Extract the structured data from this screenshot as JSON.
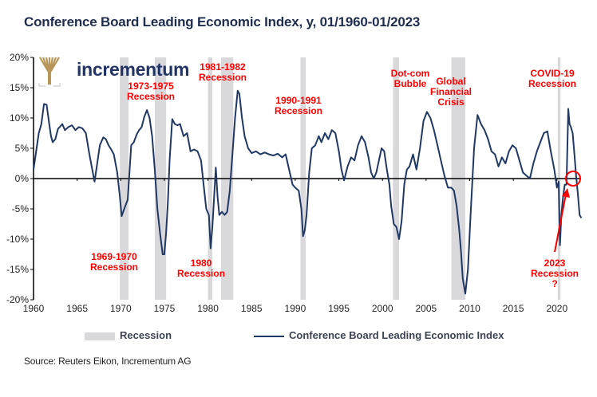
{
  "title": "Conference Board Leading Economic Index, y, 01/1960-01/2023",
  "logo": {
    "text": "incrementum",
    "icon": "tree-icon",
    "color": "#b8965a"
  },
  "legend": {
    "recession_label": "Recession",
    "series_label": "Conference Board Leading Economic Index"
  },
  "source": "Source: Reuters Eikon, Incrementum AG",
  "colors": {
    "line": "#1f3864",
    "recession": "#d9d9dc",
    "annotation": "#ff0000",
    "axis": "#000000"
  },
  "chart_data": {
    "type": "line",
    "title": "Conference Board Leading Economic Index, y, 01/1960-01/2023",
    "xlabel": "",
    "ylabel": "",
    "xlim": [
      1960,
      2023
    ],
    "ylim": [
      -20,
      20
    ],
    "x_ticks": [
      "1960",
      "1965",
      "1970",
      "1975",
      "1980",
      "1985",
      "1990",
      "1995",
      "2000",
      "2005",
      "2010",
      "2015",
      "2020"
    ],
    "y_ticks": [
      "20%",
      "15%",
      "10%",
      "5%",
      "0%",
      "-5%",
      "-10%",
      "-15%",
      "-20%"
    ],
    "y_tick_values": [
      20,
      15,
      10,
      5,
      0,
      -5,
      -10,
      -15,
      -20
    ],
    "grid": false,
    "legend_position": "bottom",
    "recessions": [
      {
        "start": 1969.9,
        "end": 1970.9
      },
      {
        "start": 1973.9,
        "end": 1975.2
      },
      {
        "start": 1980.0,
        "end": 1980.5
      },
      {
        "start": 1981.5,
        "end": 1982.9
      },
      {
        "start": 1990.6,
        "end": 1991.2
      },
      {
        "start": 2001.2,
        "end": 2001.9
      },
      {
        "start": 2007.9,
        "end": 2009.5
      },
      {
        "start": 2020.1,
        "end": 2020.4
      }
    ],
    "series": [
      {
        "name": "Conference Board Leading Economic Index",
        "x": [
          1960.0,
          1960.3,
          1960.6,
          1960.9,
          1961.2,
          1961.5,
          1961.8,
          1962.0,
          1962.2,
          1962.5,
          1962.8,
          1963.0,
          1963.3,
          1963.6,
          1964.0,
          1964.4,
          1964.8,
          1965.2,
          1965.6,
          1966.0,
          1966.4,
          1966.8,
          1967.0,
          1967.3,
          1967.6,
          1968.0,
          1968.3,
          1968.6,
          1968.9,
          1969.2,
          1969.6,
          1969.9,
          1970.1,
          1970.4,
          1970.6,
          1970.8,
          1971.0,
          1971.2,
          1971.5,
          1971.8,
          1972.1,
          1972.4,
          1972.7,
          1973.0,
          1973.3,
          1973.6,
          1973.9,
          1974.2,
          1974.5,
          1974.8,
          1975.0,
          1975.2,
          1975.4,
          1975.6,
          1975.9,
          1976.2,
          1976.5,
          1976.8,
          1977.2,
          1977.6,
          1978.0,
          1978.4,
          1978.8,
          1979.2,
          1979.5,
          1979.8,
          1980.1,
          1980.3,
          1980.5,
          1980.7,
          1980.9,
          1981.1,
          1981.3,
          1981.6,
          1981.9,
          1982.2,
          1982.5,
          1982.8,
          1983.1,
          1983.4,
          1983.6,
          1983.9,
          1984.2,
          1984.6,
          1985.0,
          1985.5,
          1986.0,
          1986.5,
          1987.0,
          1987.5,
          1988.0,
          1988.5,
          1988.9,
          1989.3,
          1989.7,
          1990.0,
          1990.4,
          1990.7,
          1990.9,
          1991.1,
          1991.3,
          1991.6,
          1991.9,
          1992.3,
          1992.7,
          1993.0,
          1993.4,
          1993.8,
          1994.2,
          1994.6,
          1995.0,
          1995.3,
          1995.6,
          1996.0,
          1996.4,
          1996.8,
          1997.2,
          1997.6,
          1998.0,
          1998.4,
          1998.7,
          1999.0,
          1999.3,
          1999.6,
          1999.9,
          2000.2,
          2000.5,
          2000.8,
          2001.0,
          2001.3,
          2001.6,
          2001.9,
          2002.2,
          2002.5,
          2002.8,
          2003.1,
          2003.5,
          2003.9,
          2004.3,
          2004.7,
          2005.1,
          2005.5,
          2005.9,
          2006.3,
          2006.7,
          2007.1,
          2007.5,
          2007.9,
          2008.2,
          2008.5,
          2008.8,
          2009.0,
          2009.2,
          2009.5,
          2009.8,
          2010.1,
          2010.5,
          2010.9,
          2011.3,
          2011.7,
          2012.1,
          2012.5,
          2012.9,
          2013.3,
          2013.7,
          2014.1,
          2014.5,
          2014.9,
          2015.3,
          2015.7,
          2016.1,
          2016.5,
          2016.9,
          2017.3,
          2017.7,
          2018.1,
          2018.5,
          2018.9,
          2019.3,
          2019.7,
          2020.0,
          2020.2,
          2020.35,
          2020.5,
          2020.7,
          2020.9,
          2021.1,
          2021.3,
          2021.45,
          2021.6,
          2021.8,
          2022.0,
          2022.2,
          2022.4,
          2022.6,
          2022.8
        ],
        "y": [
          1.5,
          4.5,
          7.5,
          9.0,
          12.3,
          12.2,
          9.0,
          7.0,
          6.0,
          6.5,
          8.2,
          8.5,
          9.0,
          8.0,
          8.5,
          8.8,
          8.0,
          8.5,
          8.3,
          7.5,
          4.0,
          1.0,
          -0.5,
          2.5,
          5.5,
          6.8,
          6.5,
          5.5,
          4.8,
          4.0,
          1.0,
          -3.0,
          -6.2,
          -5.0,
          -4.2,
          -3.5,
          1.0,
          5.5,
          6.0,
          7.2,
          8.0,
          8.5,
          10.2,
          11.3,
          10.0,
          7.0,
          1.5,
          -5.0,
          -9.0,
          -12.5,
          -12.5,
          -9.0,
          -4.0,
          3.0,
          9.8,
          9.0,
          8.8,
          9.0,
          7.0,
          7.5,
          4.5,
          4.8,
          4.5,
          3.0,
          -1.0,
          -5.0,
          -6.0,
          -11.5,
          -8.0,
          -3.0,
          1.8,
          -3.0,
          -6.0,
          -5.5,
          -6.0,
          -5.5,
          -2.0,
          4.0,
          10.0,
          14.5,
          14.0,
          10.0,
          7.0,
          5.0,
          4.2,
          4.5,
          4.0,
          4.3,
          4.0,
          3.8,
          4.1,
          3.5,
          4.0,
          1.5,
          -1.0,
          -1.5,
          -2.0,
          -5.0,
          -9.5,
          -8.5,
          -6.0,
          1.0,
          5.0,
          5.5,
          7.0,
          6.0,
          7.5,
          6.5,
          8.0,
          7.5,
          4.5,
          1.5,
          -0.3,
          2.0,
          3.5,
          3.0,
          5.5,
          7.0,
          6.0,
          3.5,
          1.0,
          0.0,
          1.0,
          3.0,
          5.0,
          4.5,
          1.5,
          -1.0,
          -4.5,
          -7.5,
          -8.0,
          -10.0,
          -7.0,
          -1.0,
          1.5,
          2.0,
          4.0,
          1.5,
          5.0,
          9.5,
          11.0,
          10.0,
          8.0,
          5.5,
          3.0,
          0.5,
          -1.5,
          -1.5,
          -2.0,
          -4.5,
          -8.5,
          -12.0,
          -16.5,
          -19.0,
          -15.0,
          -6.0,
          5.0,
          10.5,
          9.0,
          8.0,
          6.5,
          4.5,
          4.0,
          2.0,
          3.5,
          2.5,
          4.5,
          5.5,
          5.0,
          3.0,
          1.0,
          0.5,
          0.0,
          2.5,
          4.5,
          6.0,
          7.5,
          7.8,
          4.5,
          1.5,
          -1.5,
          -0.5,
          -11.0,
          -6.0,
          -3.0,
          -1.0,
          -1.0,
          11.5,
          9.0,
          8.5,
          7.5,
          4.0,
          0.5,
          -2.5,
          -6.0,
          -6.5
        ]
      }
    ],
    "annotations": [
      {
        "text": "1969-1970\nRecession"
      },
      {
        "text": "1973-1975\nRecession"
      },
      {
        "text": "1980\nRecession"
      },
      {
        "text": "1981-1982\nRecession"
      },
      {
        "text": "1990-1991\nRecession"
      },
      {
        "text": "Dot-com\nBubble"
      },
      {
        "text": "Global\nFinancial\nCrisis"
      },
      {
        "text": "COVID-19\nRecession"
      },
      {
        "text": "2023\nRecession\n?"
      }
    ]
  }
}
